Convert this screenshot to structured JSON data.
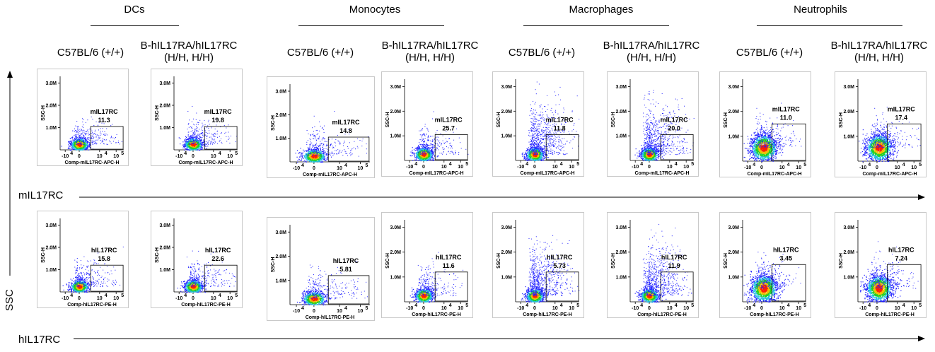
{
  "groups": [
    "DCs",
    "Monocytes",
    "Macrophages",
    "Neutrophils"
  ],
  "strains": [
    "C57BL/6 (+/+)",
    "B-hIL17RA/hIL17RC\n(H/H, H/H)"
  ],
  "axis_labels": {
    "row1_marker": "mIL17RC",
    "row2_marker": "hIL17RC",
    "vertical": "SSC",
    "row1_xlabel": "Comp-mIL17RC-APC-H",
    "row2_xlabel": "Comp-hIL17RC-PE-H",
    "ylabel": "SSC-H"
  },
  "tick_labels": {
    "y": [
      "3.0M",
      "2.0M",
      "1.0M"
    ],
    "x": [
      "-10",
      "0",
      "10",
      "10"
    ],
    "x_exp": [
      "4",
      "",
      "4",
      "5"
    ]
  },
  "colors": {
    "density_low": "#2020ff",
    "density_mid": "#20d020",
    "density_high": "#ff2000"
  },
  "chart_data": [
    {
      "type": "scatter",
      "title": "DCs",
      "strain": "C57BL/6 (+/+)",
      "gate": "mIL17RC",
      "percent": "11.3"
    },
    {
      "type": "scatter",
      "title": "DCs",
      "strain": "B-hIL17RA/hIL17RC (H/H, H/H)",
      "gate": "mIL17RC",
      "percent": "19.8"
    },
    {
      "type": "scatter",
      "title": "Monocytes",
      "strain": "C57BL/6 (+/+)",
      "gate": "mIL17RC",
      "percent": "14.8"
    },
    {
      "type": "scatter",
      "title": "Monocytes",
      "strain": "B-hIL17RA/hIL17RC (H/H, H/H)",
      "gate": "mIL17RC",
      "percent": "25.7"
    },
    {
      "type": "scatter",
      "title": "Macrophages",
      "strain": "C57BL/6 (+/+)",
      "gate": "mIL17RC",
      "percent": "11.8"
    },
    {
      "type": "scatter",
      "title": "Macrophages",
      "strain": "B-hIL17RA/hIL17RC (H/H, H/H)",
      "gate": "mIL17RC",
      "percent": "20.0"
    },
    {
      "type": "scatter",
      "title": "Neutrophils",
      "strain": "C57BL/6 (+/+)",
      "gate": "mIL17RC",
      "percent": "11.0"
    },
    {
      "type": "scatter",
      "title": "Neutrophils",
      "strain": "B-hIL17RA/hIL17RC (H/H, H/H)",
      "gate": "mIL17RC",
      "percent": "17.4"
    },
    {
      "type": "scatter",
      "title": "DCs",
      "strain": "C57BL/6 (+/+)",
      "gate": "hIL17RC",
      "percent": "15.8"
    },
    {
      "type": "scatter",
      "title": "DCs",
      "strain": "B-hIL17RA/hIL17RC (H/H, H/H)",
      "gate": "hIL17RC",
      "percent": "22.6"
    },
    {
      "type": "scatter",
      "title": "Monocytes",
      "strain": "C57BL/6 (+/+)",
      "gate": "hIL17RC",
      "percent": "5.81"
    },
    {
      "type": "scatter",
      "title": "Monocytes",
      "strain": "B-hIL17RA/hIL17RC (H/H, H/H)",
      "gate": "hIL17RC",
      "percent": "11.6"
    },
    {
      "type": "scatter",
      "title": "Macrophages",
      "strain": "C57BL/6 (+/+)",
      "gate": "hIL17RC",
      "percent": "5.73"
    },
    {
      "type": "scatter",
      "title": "Macrophages",
      "strain": "B-hIL17RA/hIL17RC (H/H, H/H)",
      "gate": "hIL17RC",
      "percent": "11.9"
    },
    {
      "type": "scatter",
      "title": "Neutrophils",
      "strain": "C57BL/6 (+/+)",
      "gate": "hIL17RC",
      "percent": "3.45"
    },
    {
      "type": "scatter",
      "title": "Neutrophils",
      "strain": "B-hIL17RA/hIL17RC (H/H, H/H)",
      "gate": "hIL17RC",
      "percent": "7.24"
    }
  ]
}
